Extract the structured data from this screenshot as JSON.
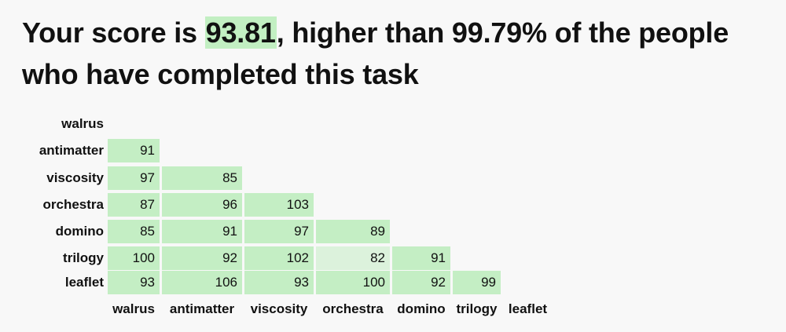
{
  "headline": {
    "prefix": "Your score is ",
    "score": "93.81",
    "suffix": ", higher than 99.79% of the people who have completed this task"
  },
  "matrix": {
    "words": [
      "walrus",
      "antimatter",
      "viscosity",
      "orchestra",
      "domino",
      "trilogy",
      "leaflet"
    ],
    "rows": [
      [],
      [
        "91"
      ],
      [
        "97",
        "85"
      ],
      [
        "87",
        "96",
        "103"
      ],
      [
        "85",
        "91",
        "97",
        "89"
      ],
      [
        "100",
        "92",
        "102",
        "82",
        "91"
      ],
      [
        "93",
        "106",
        "93",
        "100",
        "92",
        "99"
      ]
    ],
    "cell_color": "#c4eec4",
    "light_cell_color": "#dcf2dc"
  }
}
